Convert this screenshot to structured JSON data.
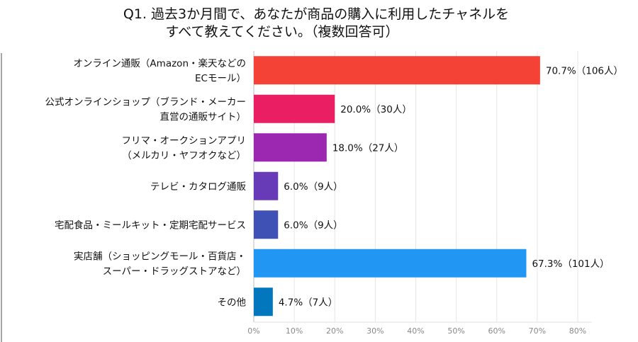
{
  "chart_data": {
    "type": "bar",
    "orientation": "horizontal",
    "title": [
      "Q1. 過去3か月間で、あなたが商品の購入に利用したチャネルを",
      "すべて教えてください。（複数回答可）"
    ],
    "categories": [
      [
        "オンライン通販（Amazon・楽天などの",
        "ECモール）"
      ],
      [
        "公式オンラインショップ（ブランド・メーカー",
        "直営の通販サイト）"
      ],
      [
        "フリマ・オークションアプリ",
        "（メルカリ・ヤフオクなど）"
      ],
      [
        "テレビ・カタログ通販"
      ],
      [
        "宅配食品・ミールキット・定期宅配サービス"
      ],
      [
        "実店舗（ショッピングモール・百貨店・",
        "スーパー・ドラッグストアなど）"
      ],
      [
        "その他"
      ]
    ],
    "values": [
      70.7,
      20.0,
      18.0,
      6.0,
      6.0,
      67.3,
      4.7
    ],
    "data_labels": [
      "70.7%（106人）",
      "20.0%（30人）",
      "18.0%（27人）",
      "6.0%（9人）",
      "6.0%（9人）",
      "67.3%（101人）",
      "4.7%（7人）"
    ],
    "colors": [
      "#F44336",
      "#E91E63",
      "#9C27B0",
      "#673AB7",
      "#3F51B5",
      "#2196F3",
      "#0277BD"
    ],
    "xlim": [
      0,
      80
    ],
    "xticks": [
      "0%",
      "10%",
      "20%",
      "30%",
      "40%",
      "50%",
      "60%",
      "70%",
      "80%"
    ],
    "grid": true
  }
}
